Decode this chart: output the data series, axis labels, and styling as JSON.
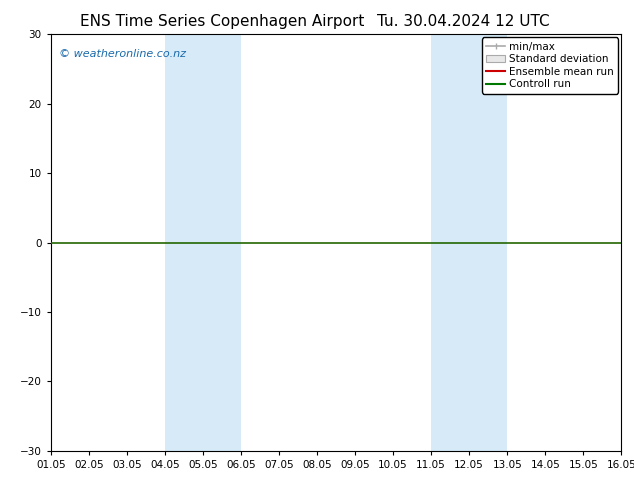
{
  "title": "ENS Time Series Copenhagen Airport",
  "title_right": "Tu. 30.04.2024 12 UTC",
  "watermark": "© weatheronline.co.nz",
  "ylim": [
    -30,
    30
  ],
  "yticks": [
    -30,
    -20,
    -10,
    0,
    10,
    20,
    30
  ],
  "xlim": [
    0,
    15
  ],
  "xtick_labels": [
    "01.05",
    "02.05",
    "03.05",
    "04.05",
    "05.05",
    "06.05",
    "07.05",
    "08.05",
    "09.05",
    "10.05",
    "11.05",
    "12.05",
    "13.05",
    "14.05",
    "15.05",
    "16.05"
  ],
  "shaded_bands": [
    [
      3,
      4
    ],
    [
      4,
      5
    ],
    [
      10,
      11
    ],
    [
      11,
      12
    ]
  ],
  "band_color": "#d6eaf8",
  "zero_line_color": "#226600",
  "background_color": "#ffffff",
  "legend_labels": [
    "min/max",
    "Standard deviation",
    "Ensemble mean run",
    "Controll run"
  ],
  "legend_line_colors": [
    "#aaaaaa",
    "#cccccc",
    "#cc0000",
    "#007700"
  ],
  "watermark_color": "#1a6aab",
  "title_fontsize": 11,
  "tick_fontsize": 7.5,
  "legend_fontsize": 7.5,
  "watermark_fontsize": 8
}
